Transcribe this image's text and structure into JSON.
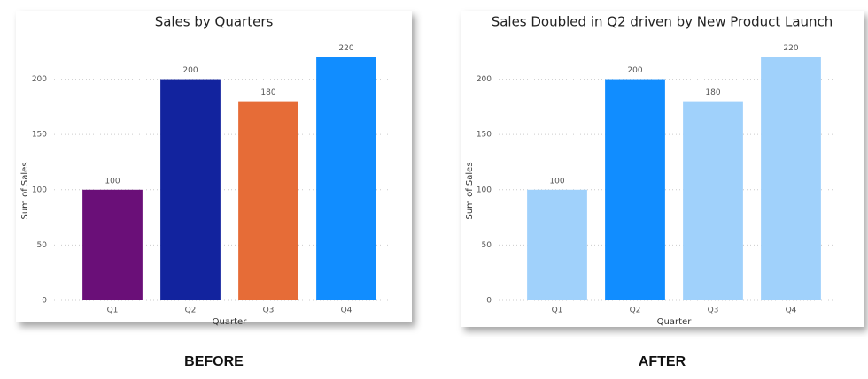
{
  "chart_data": [
    {
      "type": "bar",
      "title": "Sales by Quarters",
      "caption": "BEFORE",
      "x_label": "Quarter",
      "y_label": "Sum of Sales",
      "categories": [
        "Q1",
        "Q2",
        "Q3",
        "Q4"
      ],
      "values": [
        100,
        200,
        180,
        220
      ],
      "colors": [
        "#6a0f78",
        "#12239e",
        "#e66c37",
        "#118dff"
      ],
      "ylim": [
        0,
        230
      ],
      "yticks": [
        0,
        50,
        100,
        150,
        200
      ],
      "grid": true
    },
    {
      "type": "bar",
      "title": "Sales Doubled in Q2 driven by New Product Launch",
      "caption": "AFTER",
      "x_label": "Quarter",
      "y_label": "Sum of Sales",
      "categories": [
        "Q1",
        "Q2",
        "Q3",
        "Q4"
      ],
      "values": [
        100,
        200,
        180,
        220
      ],
      "colors": [
        "#a0d1fb",
        "#118dff",
        "#a0d1fb",
        "#a0d1fb"
      ],
      "ylim": [
        0,
        230
      ],
      "yticks": [
        0,
        50,
        100,
        150,
        200
      ],
      "grid": true
    }
  ]
}
